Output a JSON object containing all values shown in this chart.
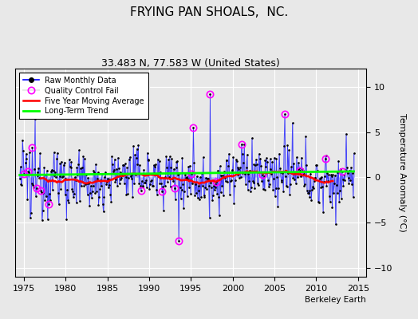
{
  "title": "FRYING PAN SHOALS,  NC.",
  "subtitle": "33.483 N, 77.583 W (United States)",
  "ylabel": "Temperature Anomaly (°C)",
  "xlabel_note": "Berkeley Earth",
  "xlim": [
    1974,
    2016
  ],
  "ylim": [
    -11,
    12
  ],
  "yticks": [
    -10,
    -5,
    0,
    5,
    10
  ],
  "xticks": [
    1975,
    1980,
    1985,
    1990,
    1995,
    2000,
    2005,
    2010,
    2015
  ],
  "bg_color": "#e8e8e8",
  "title_fontsize": 11,
  "subtitle_fontsize": 9,
  "seed": 12345
}
